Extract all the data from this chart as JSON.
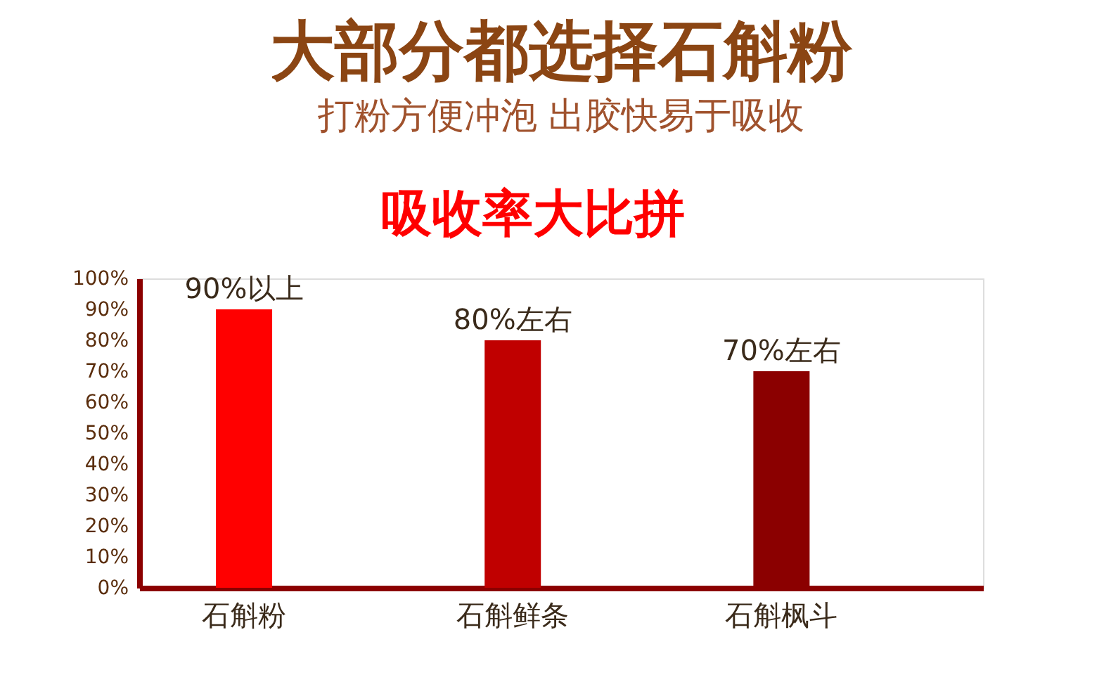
{
  "chart_data": {
    "type": "bar",
    "title": "大部分都选择石斛粉",
    "subtitle": "打粉方便冲泡 出胶快易于吸收",
    "annotations": [
      "吸收率大比拼"
    ],
    "categories": [
      "石斛粉",
      "石斛鲜条",
      "石斛枫斗"
    ],
    "values": [
      90,
      80,
      70
    ],
    "colors": [
      "#ff0000",
      "#c00000",
      "#8b0000"
    ],
    "value_labels": [
      "90%以上",
      "80%左右",
      "70%左右"
    ],
    "ylim": [
      0,
      100
    ],
    "yticks": [
      {
        "value": 0,
        "label": "0%"
      },
      {
        "value": 10,
        "label": "10%"
      },
      {
        "value": 20,
        "label": "20%"
      },
      {
        "value": 30,
        "label": "30%"
      },
      {
        "value": 40,
        "label": "40%"
      },
      {
        "value": 50,
        "label": "50%"
      },
      {
        "value": 60,
        "label": "60%"
      },
      {
        "value": 70,
        "label": "70%"
      },
      {
        "value": 80,
        "label": "80%"
      },
      {
        "value": 90,
        "label": "90%"
      },
      {
        "value": 100,
        "label": "100%"
      }
    ],
    "grid": false,
    "legend": false
  }
}
